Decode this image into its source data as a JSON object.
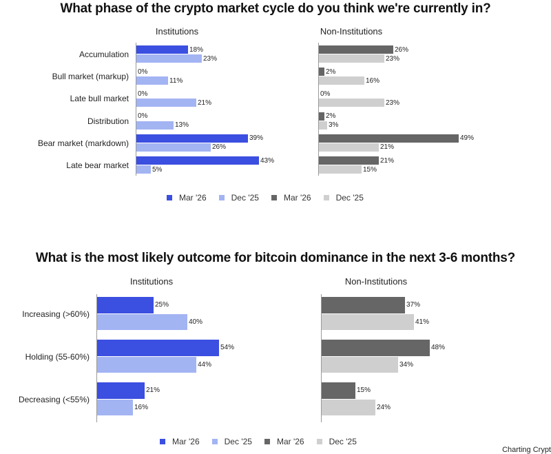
{
  "colors": {
    "inst_mar26": "#3b4fe0",
    "inst_dec25": "#a3b4f3",
    "non_mar26": "#666666",
    "non_dec25": "#cfcfcf"
  },
  "chart_data": [
    {
      "type": "bar",
      "orientation": "horizontal",
      "title": "What phase of the crypto market cycle do you think we're currently in?",
      "panels": [
        "Institutions",
        "Non-Institutions"
      ],
      "categories": [
        "Accumulation",
        "Bull market (markup)",
        "Late bull market",
        "Distribution",
        "Bear market (markdown)",
        "Late bear market"
      ],
      "series": [
        {
          "panel": "Institutions",
          "name": "Mar '26",
          "values": [
            18,
            0,
            0,
            0,
            39,
            43
          ]
        },
        {
          "panel": "Institutions",
          "name": "Dec '25",
          "values": [
            23,
            11,
            21,
            13,
            26,
            5
          ]
        },
        {
          "panel": "Non-Institutions",
          "name": "Mar '26",
          "values": [
            26,
            2,
            0,
            2,
            49,
            21
          ]
        },
        {
          "panel": "Non-Institutions",
          "name": "Dec '25",
          "values": [
            23,
            16,
            23,
            3,
            21,
            15
          ]
        }
      ],
      "value_format": "percent",
      "legend": [
        "Mar '26",
        "Dec '25",
        "Mar '26",
        "Dec '25"
      ],
      "legend_position": "bottom",
      "grid": false
    },
    {
      "type": "bar",
      "orientation": "horizontal",
      "title": "What is the most likely outcome for bitcoin dominance in the next 3-6 months?",
      "panels": [
        "Institutions",
        "Non-Institutions"
      ],
      "categories": [
        "Increasing (>60%)",
        "Holding (55-60%)",
        "Decreasing (<55%)"
      ],
      "series": [
        {
          "panel": "Institutions",
          "name": "Mar '26",
          "values": [
            25,
            54,
            21
          ]
        },
        {
          "panel": "Institutions",
          "name": "Dec '25",
          "values": [
            40,
            44,
            16
          ]
        },
        {
          "panel": "Non-Institutions",
          "name": "Mar '26",
          "values": [
            37,
            48,
            15
          ]
        },
        {
          "panel": "Non-Institutions",
          "name": "Dec '25",
          "values": [
            41,
            34,
            24
          ]
        }
      ],
      "value_format": "percent",
      "legend": [
        "Mar '26",
        "Dec '25",
        "Mar '26",
        "Dec '25"
      ],
      "legend_position": "bottom",
      "grid": false
    }
  ],
  "chart1": {
    "title": "What phase of the crypto market cycle do you think we're currently in?",
    "panel_left": "Institutions",
    "panel_right": "Non-Institutions",
    "categories": [
      "Accumulation",
      "Bull market (markup)",
      "Late bull market",
      "Distribution",
      "Bear market (markdown)",
      "Late bear market"
    ],
    "inst_mar": [
      18,
      0,
      0,
      0,
      39,
      43
    ],
    "inst_dec": [
      23,
      11,
      21,
      13,
      26,
      5
    ],
    "non_mar": [
      26,
      2,
      0,
      2,
      49,
      21
    ],
    "non_dec": [
      23,
      16,
      23,
      3,
      21,
      15
    ],
    "legend": [
      "Mar '26",
      "Dec '25",
      "Mar '26",
      "Dec '25"
    ]
  },
  "chart2": {
    "title": "What is the most likely outcome for bitcoin dominance in the next 3-6 months?",
    "panel_left": "Institutions",
    "panel_right": "Non-Institutions",
    "categories": [
      "Increasing (>60%)",
      "Holding (55-60%)",
      "Decreasing (<55%)"
    ],
    "inst_mar": [
      25,
      54,
      21
    ],
    "inst_dec": [
      40,
      44,
      16
    ],
    "non_mar": [
      37,
      48,
      15
    ],
    "non_dec": [
      41,
      34,
      24
    ],
    "legend": [
      "Mar '26",
      "Dec '25",
      "Mar '26",
      "Dec '25"
    ]
  },
  "watermark": "Charting Crypt"
}
